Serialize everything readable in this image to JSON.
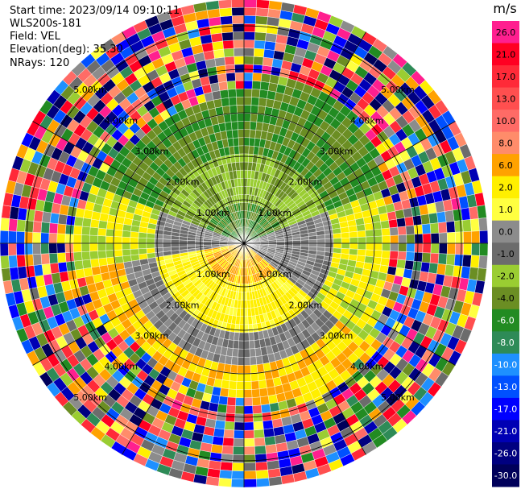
{
  "header": {
    "start_time": "Start time: 2023/09/14 09:10:11",
    "instrument": "WLS200s-181",
    "field": "Field: VEL",
    "elevation": "Elevation(deg): 35.30",
    "nrays": "NRays: 120"
  },
  "colorbar": {
    "unit": "m/s",
    "levels": [
      {
        "label": "26.0",
        "color": "#ff1f8f"
      },
      {
        "label": "21.0",
        "color": "#ff0022"
      },
      {
        "label": "17.0",
        "color": "#ff2a38"
      },
      {
        "label": "13.0",
        "color": "#ff4f4f"
      },
      {
        "label": "10.0",
        "color": "#ff6b66"
      },
      {
        "label": "8.0",
        "color": "#ff8c6a"
      },
      {
        "label": "6.0",
        "color": "#ffa200"
      },
      {
        "label": "2.0",
        "color": "#ffef00"
      },
      {
        "label": "1.0",
        "color": "#ffff40"
      },
      {
        "label": "0.0",
        "color": "#8c8c8c"
      },
      {
        "label": "-1.0",
        "color": "#6c6c6c"
      },
      {
        "label": "-2.0",
        "color": "#9acd32"
      },
      {
        "label": "-4.0",
        "color": "#6b8e23"
      },
      {
        "label": "-6.0",
        "color": "#228b22"
      },
      {
        "label": "-8.0",
        "color": "#2e8b57"
      },
      {
        "label": "-10.0",
        "color": "#1e90ff"
      },
      {
        "label": "-13.0",
        "color": "#0050ff"
      },
      {
        "label": "-17.0",
        "color": "#0000ff"
      },
      {
        "label": "-21.0",
        "color": "#0000b4"
      },
      {
        "label": "-26.0",
        "color": "#000080"
      },
      {
        "label": "-30.0",
        "color": "#00005a"
      }
    ]
  },
  "chart_data": {
    "type": "heatmap",
    "projection": "polar PPI scan",
    "field": "VEL",
    "unit": "m/s",
    "color_range": [
      -30,
      26
    ],
    "range_rings_km": [
      1,
      2,
      3,
      4,
      5
    ],
    "ring_labels": [
      "1.00km",
      "2.00km",
      "3.00km",
      "4.00km",
      "5.00km"
    ],
    "azimuth_spokes_deg": [
      0,
      30,
      60,
      90,
      120,
      150,
      180,
      210,
      240,
      270,
      300,
      330
    ],
    "pattern": "near-field: grey/yellow/green bands (-4 to 2 m/s); beyond ~3 km noisy full-range values"
  }
}
